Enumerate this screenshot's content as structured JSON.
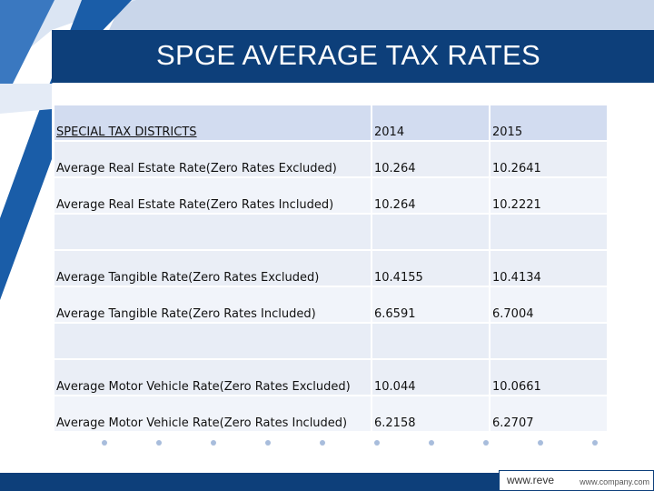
{
  "slide": {
    "title": "SPGE AVERAGE TAX RATES"
  },
  "table": {
    "header": {
      "label": "SPECIAL TAX DISTRICTS",
      "year1": "2014",
      "year2": "2015"
    },
    "rows": [
      {
        "label": "Average Real Estate Rate(Zero Rates Excluded)",
        "year1": "10.264",
        "year2": "10.2641"
      },
      {
        "label": "Average Real Estate Rate(Zero Rates Included)",
        "year1": "10.264",
        "year2": "10.2221"
      },
      {
        "label": "",
        "year1": "",
        "year2": ""
      },
      {
        "label": "Average Tangible Rate(Zero Rates Excluded)",
        "year1": "10.4155",
        "year2": "10.4134"
      },
      {
        "label": "Average Tangible Rate(Zero Rates Included)",
        "year1": "6.6591",
        "year2": "6.7004"
      },
      {
        "label": "",
        "year1": "",
        "year2": ""
      },
      {
        "label": "Average Motor Vehicle Rate(Zero Rates Excluded)",
        "year1": "10.044",
        "year2": "10.0661"
      },
      {
        "label": "Average Motor Vehicle Rate(Zero Rates Included)",
        "year1": "6.2158",
        "year2": "6.2707"
      }
    ]
  },
  "footer": {
    "url_main": "www.reve",
    "url_small": "www.company.com"
  },
  "colors": {
    "title_bar": "#0d3f7a",
    "accent_blue": "#1a5da8",
    "header_cell": "#d2dcf0",
    "data_cell": "#eaeef6"
  }
}
